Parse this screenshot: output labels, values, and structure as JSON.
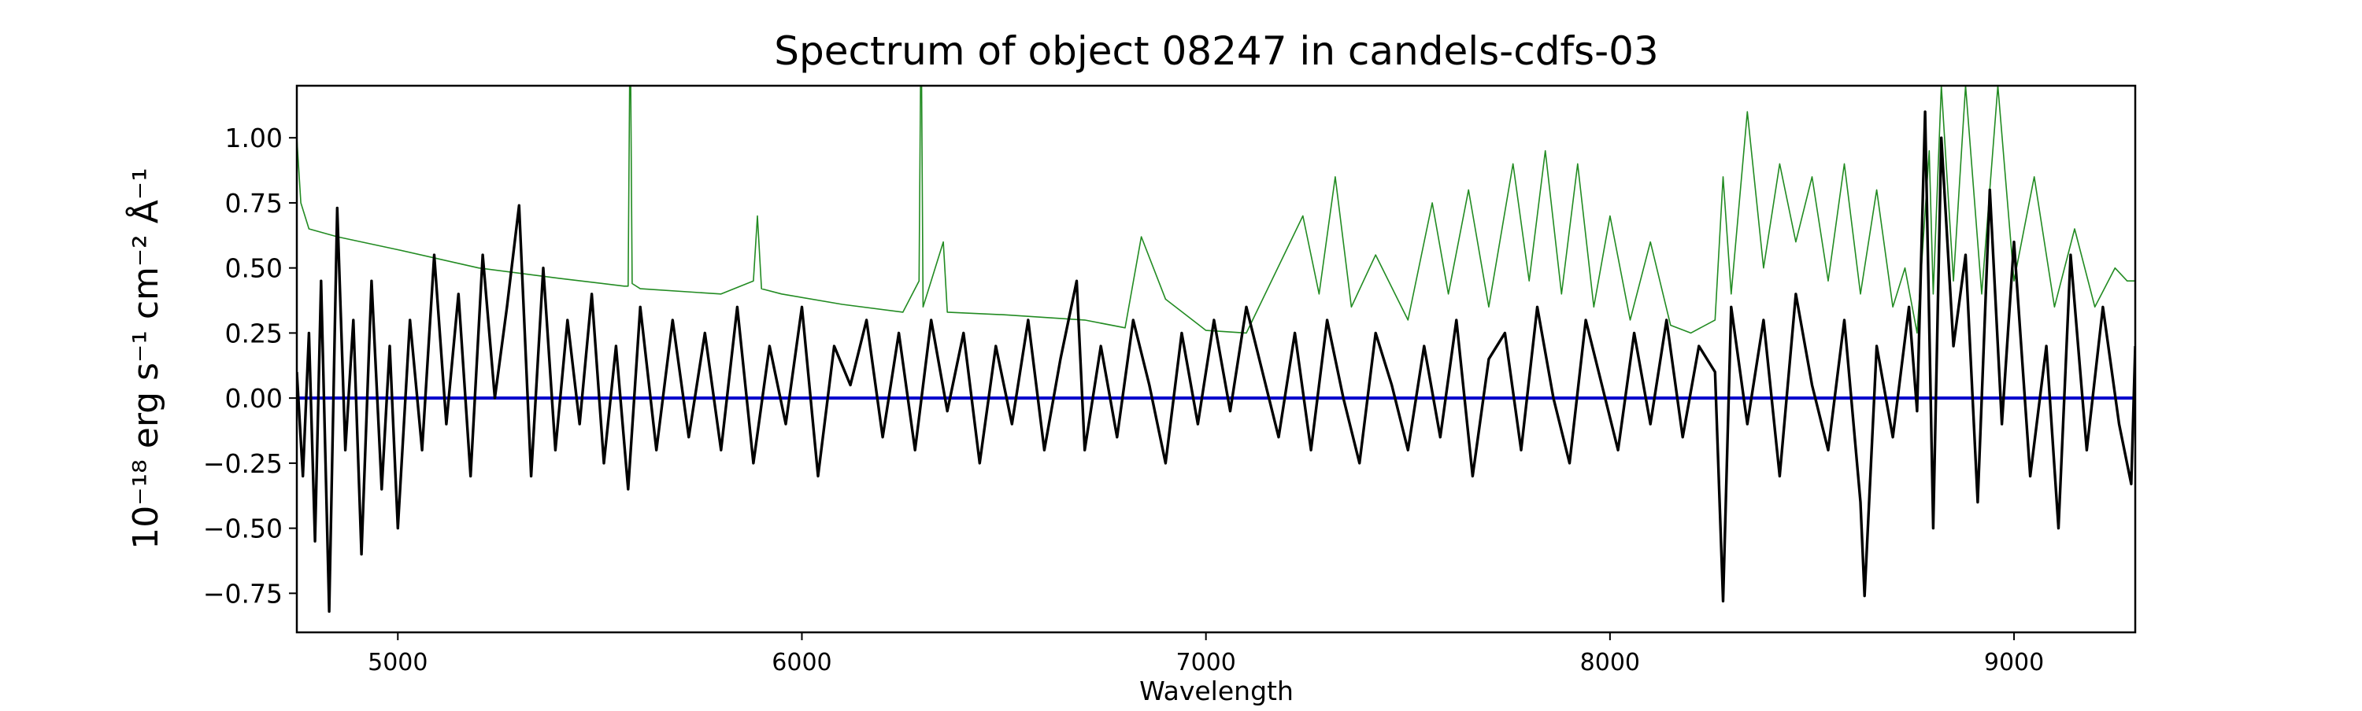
{
  "chart_data": {
    "type": "line",
    "title": "Spectrum of object 08247 in candels-cdfs-03",
    "xlabel": "Wavelength",
    "ylabel": "10⁻¹⁸ erg s⁻¹ cm⁻² Å⁻¹",
    "xlim": [
      4750,
      9300
    ],
    "ylim": [
      -0.9,
      1.2
    ],
    "x_ticks": [
      5000,
      6000,
      7000,
      8000,
      9000
    ],
    "y_ticks": [
      -0.75,
      -0.5,
      -0.25,
      0.0,
      0.25,
      0.5,
      0.75,
      1.0
    ],
    "y_tick_labels": [
      "−0.75",
      "−0.50",
      "−0.25",
      "0.00",
      "0.25",
      "0.50",
      "0.75",
      "1.00"
    ],
    "grid": false,
    "legend": "none",
    "colors": {
      "flux": "#000000",
      "noise": "#228b22",
      "zero": "#0000cd"
    },
    "series": [
      {
        "key": "noise",
        "x": [
          4750,
          4760,
          4780,
          4850,
          5000,
          5200,
          5400,
          5560,
          5570,
          5575,
          5580,
          5600,
          5800,
          5880,
          5890,
          5900,
          5950,
          6100,
          6250,
          6290,
          6295,
          6300,
          6350,
          6360,
          6500,
          6700,
          6800,
          6840,
          6900,
          7000,
          7100,
          7240,
          7280,
          7320,
          7360,
          7420,
          7500,
          7560,
          7600,
          7650,
          7700,
          7760,
          7800,
          7840,
          7880,
          7920,
          7960,
          8000,
          8050,
          8100,
          8150,
          8200,
          8260,
          8280,
          8300,
          8340,
          8380,
          8420,
          8460,
          8500,
          8540,
          8580,
          8620,
          8660,
          8700,
          8730,
          8760,
          8790,
          8800,
          8820,
          8850,
          8880,
          8920,
          8960,
          9000,
          9050,
          9100,
          9150,
          9200,
          9250,
          9280,
          9300
        ],
        "y": [
          1.0,
          0.75,
          0.65,
          0.62,
          0.57,
          0.5,
          0.46,
          0.43,
          0.43,
          1.5,
          0.44,
          0.42,
          0.4,
          0.45,
          0.7,
          0.42,
          0.4,
          0.36,
          0.33,
          0.45,
          1.5,
          0.35,
          0.6,
          0.33,
          0.32,
          0.3,
          0.27,
          0.62,
          0.38,
          0.26,
          0.25,
          0.7,
          0.4,
          0.85,
          0.35,
          0.55,
          0.3,
          0.75,
          0.4,
          0.8,
          0.35,
          0.9,
          0.45,
          0.95,
          0.4,
          0.9,
          0.35,
          0.7,
          0.3,
          0.6,
          0.28,
          0.25,
          0.3,
          0.85,
          0.4,
          1.1,
          0.5,
          0.9,
          0.6,
          0.85,
          0.45,
          0.9,
          0.4,
          0.8,
          0.35,
          0.5,
          0.25,
          0.95,
          0.4,
          1.2,
          0.45,
          1.2,
          0.4,
          1.2,
          0.45,
          0.85,
          0.35,
          0.65,
          0.35,
          0.5,
          0.45,
          0.45
        ]
      },
      {
        "key": "zero",
        "x": [
          4750,
          9300
        ],
        "y": [
          0.0,
          0.0
        ]
      },
      {
        "key": "flux",
        "x": [
          4750,
          4765,
          4780,
          4795,
          4810,
          4830,
          4850,
          4870,
          4890,
          4910,
          4935,
          4960,
          4980,
          5000,
          5030,
          5060,
          5090,
          5120,
          5150,
          5180,
          5210,
          5240,
          5270,
          5300,
          5330,
          5360,
          5390,
          5420,
          5450,
          5480,
          5510,
          5540,
          5570,
          5600,
          5640,
          5680,
          5720,
          5760,
          5800,
          5840,
          5880,
          5920,
          5960,
          6000,
          6040,
          6080,
          6120,
          6160,
          6200,
          6240,
          6280,
          6320,
          6360,
          6400,
          6440,
          6480,
          6520,
          6560,
          6600,
          6640,
          6680,
          6700,
          6740,
          6780,
          6820,
          6860,
          6900,
          6940,
          6980,
          7020,
          7060,
          7100,
          7140,
          7180,
          7220,
          7260,
          7300,
          7340,
          7380,
          7420,
          7460,
          7500,
          7540,
          7580,
          7620,
          7660,
          7700,
          7740,
          7780,
          7820,
          7860,
          7900,
          7940,
          7980,
          8020,
          8060,
          8100,
          8140,
          8180,
          8220,
          8260,
          8280,
          8300,
          8340,
          8380,
          8420,
          8460,
          8500,
          8540,
          8580,
          8620,
          8630,
          8660,
          8700,
          8740,
          8760,
          8780,
          8800,
          8820,
          8850,
          8880,
          8910,
          8940,
          8970,
          9000,
          9040,
          9080,
          9110,
          9140,
          9180,
          9220,
          9260,
          9290,
          9300
        ],
        "y": [
          0.1,
          -0.3,
          0.25,
          -0.55,
          0.45,
          -0.82,
          0.73,
          -0.2,
          0.3,
          -0.6,
          0.45,
          -0.35,
          0.2,
          -0.5,
          0.3,
          -0.2,
          0.55,
          -0.1,
          0.4,
          -0.3,
          0.55,
          0.0,
          0.35,
          0.74,
          -0.3,
          0.5,
          -0.2,
          0.3,
          -0.1,
          0.4,
          -0.25,
          0.2,
          -0.35,
          0.35,
          -0.2,
          0.3,
          -0.15,
          0.25,
          -0.2,
          0.35,
          -0.25,
          0.2,
          -0.1,
          0.35,
          -0.3,
          0.2,
          0.05,
          0.3,
          -0.15,
          0.25,
          -0.2,
          0.3,
          -0.05,
          0.25,
          -0.25,
          0.2,
          -0.1,
          0.3,
          -0.2,
          0.15,
          0.45,
          -0.2,
          0.2,
          -0.15,
          0.3,
          0.05,
          -0.25,
          0.25,
          -0.1,
          0.3,
          -0.05,
          0.35,
          0.1,
          -0.15,
          0.25,
          -0.2,
          0.3,
          0.0,
          -0.25,
          0.25,
          0.05,
          -0.2,
          0.2,
          -0.15,
          0.3,
          -0.3,
          0.15,
          0.25,
          -0.2,
          0.35,
          0.0,
          -0.25,
          0.3,
          0.05,
          -0.2,
          0.25,
          -0.1,
          0.3,
          -0.15,
          0.2,
          0.1,
          -0.78,
          0.35,
          -0.1,
          0.3,
          -0.3,
          0.4,
          0.05,
          -0.2,
          0.3,
          -0.4,
          -0.76,
          0.2,
          -0.15,
          0.35,
          -0.05,
          1.1,
          -0.5,
          1.0,
          0.2,
          0.55,
          -0.4,
          0.8,
          -0.1,
          0.6,
          -0.3,
          0.2,
          -0.5,
          0.55,
          -0.2,
          0.35,
          -0.1,
          -0.33,
          0.2
        ]
      }
    ]
  }
}
